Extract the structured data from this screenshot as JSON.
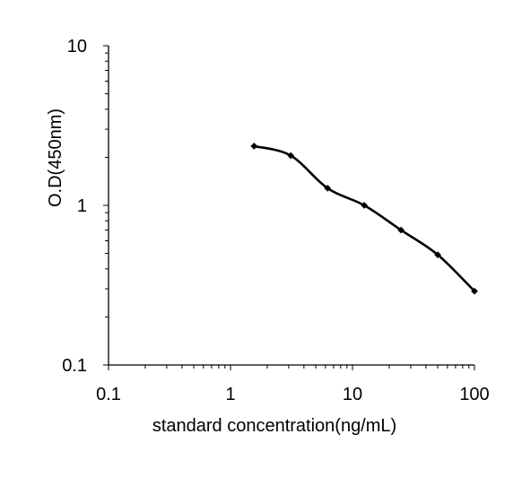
{
  "chart_data": {
    "type": "line",
    "title": "",
    "xlabel": "standard concentration(ng/mL)",
    "ylabel": "O.D(450nm)",
    "xscale": "log",
    "yscale": "log",
    "xlim": [
      0.1,
      100
    ],
    "ylim": [
      0.1,
      10
    ],
    "grid": false,
    "legend": "none",
    "x_tick_labels": [
      "0.1",
      "1",
      "10",
      "100"
    ],
    "y_tick_labels": [
      "0.1",
      "1",
      "10"
    ],
    "series": [
      {
        "color": "#000000",
        "marker": "diamond",
        "smooth": true,
        "x": [
          1.56,
          3.12,
          6.25,
          12.5,
          25,
          50,
          100
        ],
        "y": [
          2.35,
          2.05,
          1.28,
          1.0,
          0.7,
          0.49,
          0.29
        ]
      }
    ]
  }
}
